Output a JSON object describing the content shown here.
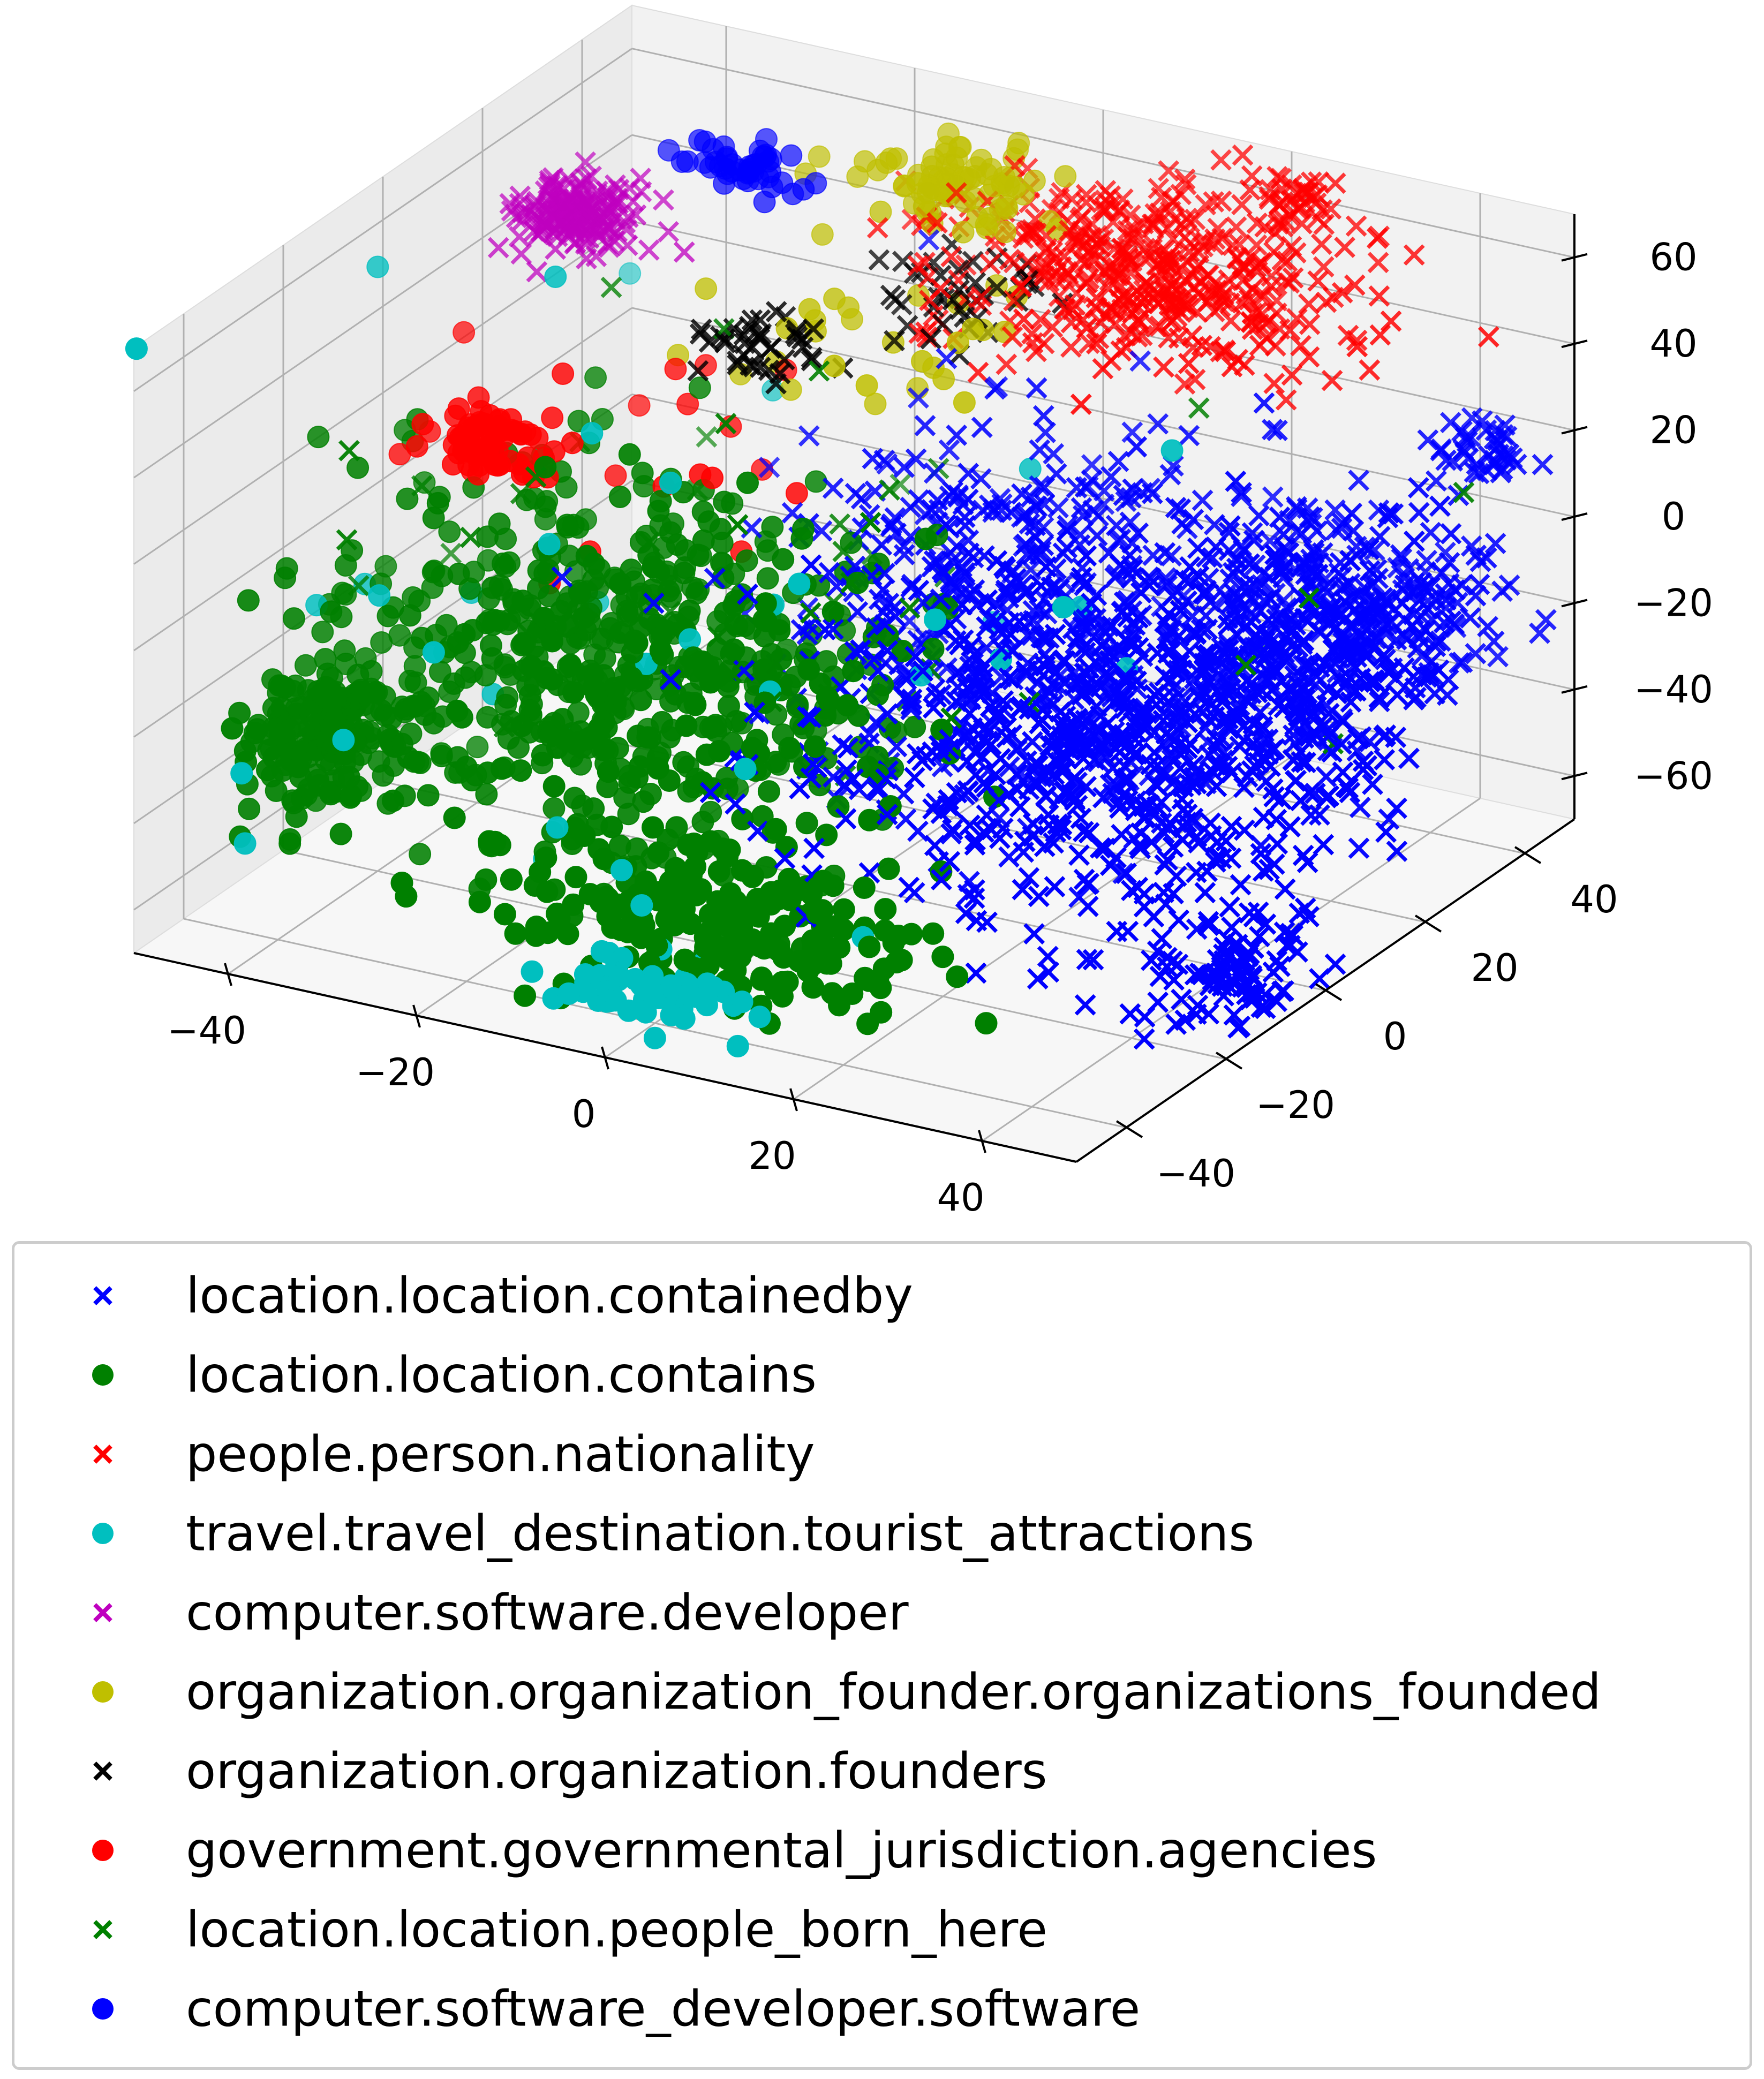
{
  "chart_data": {
    "type": "scatter",
    "projection": "3d",
    "title": "",
    "xlabel": "",
    "ylabel": "",
    "zlabel": "",
    "xlim": [
      -50,
      50
    ],
    "ylim": [
      -50,
      50
    ],
    "zlim": [
      -70,
      70
    ],
    "x_ticks": [
      "−40",
      "−20",
      "0",
      "20",
      "40"
    ],
    "y_ticks": [
      "−40",
      "−20",
      "0",
      "20",
      "40"
    ],
    "z_ticks": [
      "−60",
      "−40",
      "−20",
      "0",
      "20",
      "40",
      "60"
    ],
    "x_tick_values": [
      -40,
      -20,
      0,
      20,
      40
    ],
    "y_tick_values": [
      -40,
      -20,
      0,
      20,
      40
    ],
    "z_tick_values": [
      -60,
      -40,
      -20,
      0,
      20,
      40,
      60
    ],
    "grid": true,
    "legend_position": "below",
    "series": [
      {
        "name": "location.location.containedby",
        "marker": "x",
        "color": "#0000ff",
        "clusters": [
          {
            "center": [
              25,
              0,
              -20
            ],
            "spread": [
              14,
              12,
              18
            ],
            "count": 900
          },
          {
            "center": [
              40,
              20,
              -5
            ],
            "spread": [
              8,
              10,
              12
            ],
            "count": 420
          },
          {
            "center": [
              45,
              40,
              20
            ],
            "spread": [
              3,
              3,
              3
            ],
            "count": 40
          },
          {
            "center": [
              45,
              -10,
              -60
            ],
            "spread": [
              5,
              5,
              5
            ],
            "count": 90
          },
          {
            "center": [
              10,
              10,
              10
            ],
            "spread": [
              10,
              10,
              10
            ],
            "count": 180
          }
        ]
      },
      {
        "name": "location.location.contains",
        "marker": "o",
        "color": "#008000",
        "clusters": [
          {
            "center": [
              -20,
              -10,
              -20
            ],
            "spread": [
              14,
              10,
              20
            ],
            "count": 620
          },
          {
            "center": [
              -45,
              -20,
              -40
            ],
            "spread": [
              4,
              6,
              8
            ],
            "count": 180
          },
          {
            "center": [
              0,
              -30,
              -55
            ],
            "spread": [
              10,
              6,
              8
            ],
            "count": 220
          }
        ]
      },
      {
        "name": "people.person.nationality",
        "marker": "x",
        "color": "#ff0000",
        "clusters": [
          {
            "center": [
              10,
              40,
              45
            ],
            "spread": [
              10,
              8,
              8
            ],
            "count": 420
          },
          {
            "center": [
              20,
              48,
              60
            ],
            "spread": [
              3,
              3,
              4
            ],
            "count": 40
          }
        ]
      },
      {
        "name": "travel.travel_destination.tourist_attractions",
        "marker": "o",
        "color": "#00bfbf",
        "clusters": [
          {
            "center": [
              0,
              -40,
              -62
            ],
            "spread": [
              5,
              3,
              3
            ],
            "count": 60
          },
          {
            "center": [
              -20,
              -10,
              -10
            ],
            "spread": [
              20,
              20,
              30
            ],
            "count": 40
          }
        ]
      },
      {
        "name": "computer.software.developer",
        "marker": "x",
        "color": "#bf00bf",
        "clusters": [
          {
            "center": [
              -40,
              20,
              50
            ],
            "spread": [
              3,
              3,
              3
            ],
            "count": 180
          }
        ]
      },
      {
        "name": "organization.organization_founder.organizations_founded",
        "marker": "o",
        "color": "#bfbf00",
        "clusters": [
          {
            "center": [
              -10,
              40,
              55
            ],
            "spread": [
              5,
              4,
              4
            ],
            "count": 80
          },
          {
            "center": [
              -15,
              25,
              30
            ],
            "spread": [
              8,
              8,
              8
            ],
            "count": 30
          }
        ]
      },
      {
        "name": "organization.organization.founders",
        "marker": "x",
        "color": "#000000",
        "clusters": [
          {
            "center": [
              -15,
              10,
              40
            ],
            "spread": [
              3,
              3,
              3
            ],
            "count": 40
          },
          {
            "center": [
              -5,
              30,
              40
            ],
            "spread": [
              4,
              4,
              4
            ],
            "count": 40
          }
        ]
      },
      {
        "name": "government.governmental_jurisdiction.agencies",
        "marker": "o",
        "color": "#ff0000",
        "clusters": [
          {
            "center": [
              -35,
              -5,
              20
            ],
            "spread": [
              3,
              3,
              3
            ],
            "count": 70
          },
          {
            "center": [
              -30,
              10,
              10
            ],
            "spread": [
              10,
              10,
              12
            ],
            "count": 20
          }
        ]
      },
      {
        "name": "location.location.people_born_here",
        "marker": "x",
        "color": "#008000",
        "clusters": [
          {
            "center": [
              0,
              0,
              0
            ],
            "spread": [
              25,
              20,
              25
            ],
            "count": 50
          }
        ]
      },
      {
        "name": "computer.software_developer.software",
        "marker": "o",
        "color": "#0000ff",
        "clusters": [
          {
            "center": [
              -30,
              35,
              55
            ],
            "spread": [
              4,
              2,
              2
            ],
            "count": 45
          }
        ]
      }
    ]
  }
}
